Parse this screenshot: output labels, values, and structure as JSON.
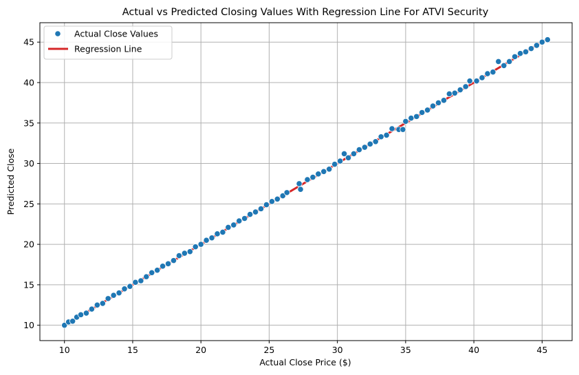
{
  "chart_data": {
    "type": "scatter",
    "title": "Actual vs Predicted Closing Values With Regression Line For ATVI Security",
    "xlabel": "Actual Close Price ($)",
    "ylabel": "Predicted Close",
    "xlim": [
      8.2,
      47.2
    ],
    "ylim": [
      8.1,
      47.4
    ],
    "xticks": [
      10,
      15,
      20,
      25,
      30,
      35,
      40,
      45
    ],
    "yticks": [
      10,
      15,
      20,
      25,
      30,
      35,
      40,
      45
    ],
    "grid": true,
    "legend_position": "top-left",
    "colors": {
      "points": "#1f77b4",
      "line": "#d62728",
      "grid": "#b0b0b0"
    },
    "series": [
      {
        "name": "Actual Close Values",
        "kind": "scatter",
        "points": [
          [
            10.0,
            10.0
          ],
          [
            10.3,
            10.4
          ],
          [
            10.6,
            10.5
          ],
          [
            10.9,
            11.0
          ],
          [
            11.2,
            11.3
          ],
          [
            11.6,
            11.5
          ],
          [
            12.0,
            12.0
          ],
          [
            12.4,
            12.5
          ],
          [
            12.8,
            12.7
          ],
          [
            13.2,
            13.3
          ],
          [
            13.6,
            13.7
          ],
          [
            14.0,
            14.0
          ],
          [
            14.4,
            14.5
          ],
          [
            14.8,
            14.8
          ],
          [
            15.2,
            15.3
          ],
          [
            15.6,
            15.5
          ],
          [
            16.0,
            16.0
          ],
          [
            16.4,
            16.5
          ],
          [
            16.8,
            16.8
          ],
          [
            17.2,
            17.3
          ],
          [
            17.6,
            17.6
          ],
          [
            18.0,
            18.0
          ],
          [
            18.4,
            18.6
          ],
          [
            18.8,
            18.9
          ],
          [
            19.2,
            19.1
          ],
          [
            19.6,
            19.7
          ],
          [
            20.0,
            20.0
          ],
          [
            20.4,
            20.5
          ],
          [
            20.8,
            20.8
          ],
          [
            21.2,
            21.3
          ],
          [
            21.6,
            21.5
          ],
          [
            22.0,
            22.1
          ],
          [
            22.4,
            22.4
          ],
          [
            22.8,
            22.9
          ],
          [
            23.2,
            23.2
          ],
          [
            23.6,
            23.7
          ],
          [
            24.0,
            24.0
          ],
          [
            24.4,
            24.4
          ],
          [
            24.8,
            24.9
          ],
          [
            25.2,
            25.3
          ],
          [
            25.6,
            25.6
          ],
          [
            26.0,
            26.0
          ],
          [
            26.3,
            26.4
          ],
          [
            27.2,
            27.5
          ],
          [
            27.3,
            26.8
          ],
          [
            27.8,
            28.0
          ],
          [
            28.2,
            28.3
          ],
          [
            28.6,
            28.7
          ],
          [
            29.0,
            29.0
          ],
          [
            29.4,
            29.3
          ],
          [
            29.8,
            29.9
          ],
          [
            30.2,
            30.3
          ],
          [
            30.5,
            31.2
          ],
          [
            30.8,
            30.7
          ],
          [
            31.2,
            31.2
          ],
          [
            31.6,
            31.7
          ],
          [
            32.0,
            32.0
          ],
          [
            32.4,
            32.4
          ],
          [
            32.8,
            32.7
          ],
          [
            33.2,
            33.3
          ],
          [
            33.6,
            33.5
          ],
          [
            34.0,
            34.3
          ],
          [
            34.5,
            34.2
          ],
          [
            34.8,
            34.2
          ],
          [
            35.0,
            35.2
          ],
          [
            35.4,
            35.6
          ],
          [
            35.8,
            35.8
          ],
          [
            36.2,
            36.3
          ],
          [
            36.6,
            36.6
          ],
          [
            37.0,
            37.1
          ],
          [
            37.4,
            37.5
          ],
          [
            37.8,
            37.8
          ],
          [
            38.2,
            38.6
          ],
          [
            38.6,
            38.7
          ],
          [
            39.0,
            39.1
          ],
          [
            39.4,
            39.5
          ],
          [
            39.7,
            40.2
          ],
          [
            40.2,
            40.2
          ],
          [
            40.6,
            40.6
          ],
          [
            41.0,
            41.1
          ],
          [
            41.4,
            41.3
          ],
          [
            41.8,
            42.6
          ],
          [
            42.2,
            42.1
          ],
          [
            42.6,
            42.6
          ],
          [
            43.0,
            43.2
          ],
          [
            43.4,
            43.6
          ],
          [
            43.8,
            43.8
          ],
          [
            44.2,
            44.2
          ],
          [
            44.6,
            44.6
          ],
          [
            45.0,
            45.0
          ],
          [
            45.4,
            45.3
          ]
        ]
      },
      {
        "name": "Regression Line",
        "kind": "line",
        "points": [
          [
            10.0,
            10.0
          ],
          [
            45.4,
            45.4
          ]
        ]
      }
    ]
  }
}
